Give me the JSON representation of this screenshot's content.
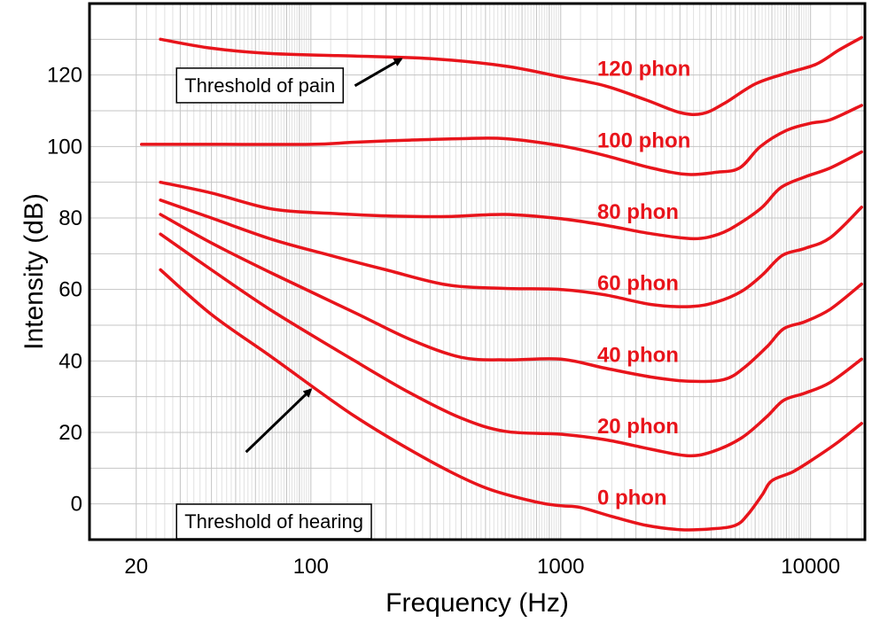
{
  "chart_data": {
    "type": "line",
    "xscale": "log",
    "xlim": [
      13,
      16500
    ],
    "ylim": [
      -10,
      140
    ],
    "xlabel": "Frequency (Hz)",
    "ylabel": "Intensity (dB)",
    "x_ticks": [
      20,
      100,
      1000,
      10000
    ],
    "y_ticks": [
      0,
      20,
      40,
      60,
      80,
      100,
      120
    ],
    "grid": true,
    "colors": {
      "curve": "#e8141b",
      "grid": "#c4c4c4",
      "frame": "#000000"
    },
    "series": [
      {
        "name": "120 phon",
        "label_at": [
          1400,
          122
        ],
        "points": [
          [
            25,
            130
          ],
          [
            40,
            127.5
          ],
          [
            70,
            126
          ],
          [
            150,
            125.3
          ],
          [
            300,
            124.6
          ],
          [
            600,
            122.5
          ],
          [
            1000,
            119.5
          ],
          [
            1500,
            117
          ],
          [
            2200,
            113
          ],
          [
            3000,
            109.5
          ],
          [
            3700,
            109.2
          ],
          [
            4500,
            112
          ],
          [
            6000,
            117.5
          ],
          [
            8000,
            120.5
          ],
          [
            10500,
            123
          ],
          [
            13000,
            127
          ],
          [
            16000,
            130.5
          ]
        ]
      },
      {
        "name": "100 phon",
        "label_at": [
          1400,
          102
        ],
        "points": [
          [
            21,
            100.6
          ],
          [
            40,
            100.6
          ],
          [
            100,
            100.6
          ],
          [
            150,
            101.2
          ],
          [
            250,
            101.8
          ],
          [
            400,
            102.2
          ],
          [
            600,
            102.2
          ],
          [
            1000,
            100.2
          ],
          [
            1500,
            97.5
          ],
          [
            2300,
            94
          ],
          [
            3200,
            92.2
          ],
          [
            4200,
            92.8
          ],
          [
            5200,
            94
          ],
          [
            6300,
            100
          ],
          [
            8000,
            104.5
          ],
          [
            10000,
            106.5
          ],
          [
            12000,
            107.5
          ],
          [
            16000,
            111.5
          ]
        ]
      },
      {
        "name": "80 phon",
        "label_at": [
          1400,
          82
        ],
        "points": [
          [
            25,
            90
          ],
          [
            40,
            87
          ],
          [
            70,
            82.5
          ],
          [
            120,
            81.3
          ],
          [
            200,
            80.6
          ],
          [
            350,
            80.4
          ],
          [
            600,
            81
          ],
          [
            1000,
            79.8
          ],
          [
            1500,
            78
          ],
          [
            2300,
            75.6
          ],
          [
            3400,
            74.2
          ],
          [
            4300,
            75.5
          ],
          [
            5200,
            78.5
          ],
          [
            6400,
            83
          ],
          [
            7600,
            88.5
          ],
          [
            9500,
            91.5
          ],
          [
            12000,
            94
          ],
          [
            16000,
            98.5
          ]
        ]
      },
      {
        "name": "60 phon",
        "label_at": [
          1400,
          62
        ],
        "points": [
          [
            25,
            85
          ],
          [
            40,
            80
          ],
          [
            70,
            74
          ],
          [
            120,
            69.5
          ],
          [
            200,
            65.5
          ],
          [
            350,
            61.3
          ],
          [
            600,
            60.3
          ],
          [
            1000,
            60
          ],
          [
            1500,
            58.5
          ],
          [
            2300,
            55.8
          ],
          [
            3300,
            55.2
          ],
          [
            4200,
            56.5
          ],
          [
            5300,
            59.5
          ],
          [
            6400,
            64
          ],
          [
            7700,
            69.5
          ],
          [
            9500,
            71.5
          ],
          [
            12000,
            74.5
          ],
          [
            16000,
            83
          ]
        ]
      },
      {
        "name": "40 phon",
        "label_at": [
          1400,
          42
        ],
        "points": [
          [
            25,
            81
          ],
          [
            40,
            73
          ],
          [
            70,
            64.5
          ],
          [
            150,
            53.5
          ],
          [
            250,
            46
          ],
          [
            400,
            41
          ],
          [
            600,
            40.3
          ],
          [
            1000,
            40.5
          ],
          [
            1500,
            38
          ],
          [
            2300,
            35.5
          ],
          [
            3300,
            34.3
          ],
          [
            4500,
            34.8
          ],
          [
            5400,
            38
          ],
          [
            6700,
            44
          ],
          [
            7800,
            49
          ],
          [
            9500,
            51
          ],
          [
            12000,
            54.5
          ],
          [
            16000,
            61.5
          ]
        ]
      },
      {
        "name": "20 phon",
        "label_at": [
          1400,
          22
        ],
        "points": [
          [
            25,
            75.5
          ],
          [
            40,
            65.5
          ],
          [
            70,
            54
          ],
          [
            150,
            40
          ],
          [
            250,
            31
          ],
          [
            400,
            24
          ],
          [
            600,
            20.3
          ],
          [
            1000,
            19.5
          ],
          [
            1500,
            18
          ],
          [
            2300,
            15.3
          ],
          [
            3200,
            13.5
          ],
          [
            4000,
            14.5
          ],
          [
            5300,
            18.5
          ],
          [
            6700,
            24.5
          ],
          [
            7800,
            29
          ],
          [
            9500,
            31
          ],
          [
            12000,
            34
          ],
          [
            16000,
            40.5
          ]
        ]
      },
      {
        "name": "0 phon",
        "label_at": [
          1400,
          2
        ],
        "points": [
          [
            25,
            65.5
          ],
          [
            40,
            53
          ],
          [
            70,
            41
          ],
          [
            150,
            24.5
          ],
          [
            300,
            12
          ],
          [
            500,
            4.5
          ],
          [
            800,
            0.5
          ],
          [
            1000,
            -0.5
          ],
          [
            1200,
            -1
          ],
          [
            1600,
            -3.5
          ],
          [
            2200,
            -6
          ],
          [
            3000,
            -7.2
          ],
          [
            4000,
            -7
          ],
          [
            5000,
            -6
          ],
          [
            5600,
            -3
          ],
          [
            6400,
            2.5
          ],
          [
            7000,
            6.5
          ],
          [
            8500,
            9
          ],
          [
            10500,
            13
          ],
          [
            13000,
            17.5
          ],
          [
            16000,
            22.5
          ]
        ]
      }
    ],
    "annotations": [
      {
        "text": "Threshold of pain",
        "box": [
          29,
          113
        ],
        "arrow_tail": [
          150,
          117
        ],
        "arrow_head": [
          230,
          124.5
        ]
      },
      {
        "text": "Threshold of hearing",
        "box": [
          29,
          -9
        ],
        "arrow_tail": [
          55,
          14.5
        ],
        "arrow_head": [
          100,
          32
        ]
      }
    ]
  }
}
